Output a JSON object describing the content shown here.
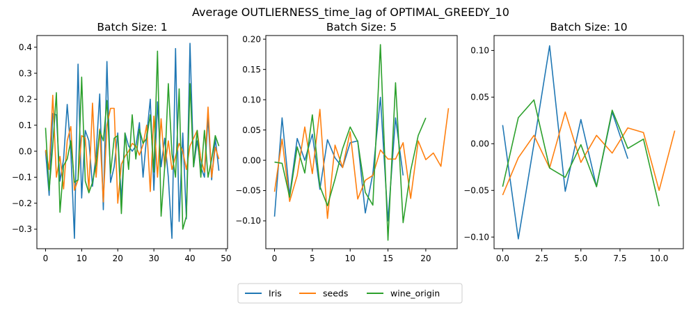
{
  "figure": {
    "suptitle": "Average OUTLIERNESS_time_lag of OPTIMAL_GREEDY_10"
  },
  "legend": {
    "placement": "bottom-center",
    "entries": [
      {
        "name": "Iris",
        "color": "#1f77b4"
      },
      {
        "name": "seeds",
        "color": "#ff7f0e"
      },
      {
        "name": "wine_origin",
        "color": "#2ca02c"
      }
    ]
  },
  "chart_data": [
    {
      "type": "line",
      "title": "Batch Size: 1",
      "xlim": [
        -2.4,
        50.4
      ],
      "ylim": [
        -0.375,
        0.445
      ],
      "xticks": [
        0,
        10,
        20,
        30,
        40,
        50
      ],
      "xtick_labels": [
        "0",
        "10",
        "20",
        "30",
        "40",
        "50"
      ],
      "yticks": [
        -0.3,
        -0.2,
        -0.1,
        0.0,
        0.1,
        0.2,
        0.3,
        0.4
      ],
      "ytick_labels": [
        "−0.3",
        "−0.2",
        "−0.1",
        "0.0",
        "0.1",
        "0.2",
        "0.3",
        "0.4"
      ],
      "series": [
        {
          "name": "Iris",
          "color": "#1f77b4",
          "y": [
            0.0,
            -0.17,
            0.145,
            0.14,
            -0.115,
            -0.03,
            0.18,
            0.0,
            -0.335,
            0.335,
            -0.18,
            0.08,
            0.04,
            -0.135,
            -0.01,
            0.22,
            -0.225,
            0.345,
            -0.12,
            -0.06,
            0.07,
            -0.19,
            0.07,
            0.02,
            0.0,
            0.02,
            0.11,
            -0.1,
            0.06,
            0.2,
            -0.15,
            0.19,
            -0.06,
            0.05,
            -0.1,
            -0.335,
            0.395,
            -0.27,
            0.07,
            -0.26,
            0.415,
            -0.06,
            0.04,
            -0.06,
            -0.1,
            0.13,
            -0.11,
            0.05,
            -0.075
          ]
        },
        {
          "name": "seeds",
          "color": "#ff7f0e",
          "y": [
            0.005,
            -0.07,
            0.215,
            -0.1,
            -0.02,
            -0.145,
            0.04,
            0.095,
            -0.15,
            -0.11,
            0.06,
            0.05,
            -0.15,
            0.185,
            -0.1,
            0.085,
            -0.195,
            0.1,
            0.165,
            0.165,
            -0.2,
            -0.05,
            -0.02,
            0.0,
            0.03,
            0.02,
            -0.015,
            0.025,
            0.1,
            -0.155,
            0.135,
            -0.1,
            0.125,
            -0.065,
            0.04,
            -0.07,
            -0.02,
            0.03,
            0.0,
            -0.07,
            0.02,
            0.05,
            0.08,
            -0.03,
            -0.08,
            0.17,
            -0.1,
            0.015,
            -0.03
          ]
        },
        {
          "name": "wine_origin",
          "color": "#2ca02c",
          "y": [
            0.09,
            -0.15,
            0.02,
            0.225,
            -0.235,
            -0.055,
            -0.03,
            0.04,
            -0.12,
            -0.11,
            0.285,
            -0.115,
            -0.16,
            -0.12,
            -0.05,
            0.08,
            0.04,
            0.195,
            -0.085,
            0.05,
            0.06,
            -0.24,
            0.07,
            -0.07,
            0.14,
            -0.03,
            0.085,
            0.03,
            0.05,
            0.14,
            -0.08,
            0.385,
            -0.25,
            -0.06,
            0.26,
            -0.01,
            -0.1,
            0.24,
            -0.3,
            -0.25,
            0.26,
            -0.06,
            0.08,
            -0.1,
            0.08,
            -0.1,
            -0.03,
            0.06,
            0.02
          ]
        }
      ]
    },
    {
      "type": "line",
      "title": "Batch Size: 5",
      "xlim": [
        -1.15,
        24.15
      ],
      "ylim": [
        -0.146,
        0.206
      ],
      "xticks": [
        0,
        5,
        10,
        15,
        20
      ],
      "xtick_labels": [
        "0",
        "5",
        "10",
        "15",
        "20"
      ],
      "yticks": [
        -0.1,
        -0.05,
        0.0,
        0.05,
        0.1,
        0.15,
        0.2
      ],
      "ytick_labels": [
        "−0.10",
        "−0.05",
        "0.00",
        "0.05",
        "0.10",
        "0.15",
        "0.20"
      ],
      "series": [
        {
          "name": "Iris",
          "color": "#1f77b4",
          "y": [
            -0.093,
            0.07,
            -0.058,
            0.036,
            0.0,
            0.043,
            -0.048,
            0.034,
            0.004,
            -0.012,
            0.029,
            0.032,
            -0.087,
            -0.022,
            0.104,
            -0.1,
            0.07,
            -0.025
          ]
        },
        {
          "name": "seeds",
          "color": "#ff7f0e",
          "y": [
            -0.052,
            0.035,
            -0.068,
            -0.025,
            0.055,
            -0.022,
            0.084,
            -0.096,
            0.025,
            -0.012,
            0.047,
            -0.064,
            -0.033,
            -0.025,
            0.017,
            0.002,
            0.002,
            0.029,
            -0.063,
            0.032,
            0.001,
            0.012,
            -0.01,
            0.086
          ]
        },
        {
          "name": "wine_origin",
          "color": "#2ca02c",
          "y": [
            -0.003,
            -0.005,
            -0.061,
            0.022,
            -0.021,
            0.075,
            -0.043,
            -0.075,
            -0.031,
            0.019,
            0.055,
            0.031,
            -0.053,
            -0.074,
            0.191,
            -0.132,
            0.128,
            -0.103,
            -0.017,
            0.041,
            0.07
          ]
        }
      ]
    },
    {
      "type": "line",
      "title": "Batch Size: 10",
      "xlim": [
        -0.55,
        11.55
      ],
      "ylim": [
        -0.1125,
        0.116
      ],
      "xticks": [
        0.0,
        2.5,
        5.0,
        7.5,
        10.0
      ],
      "xtick_labels": [
        "0.0",
        "2.5",
        "5.0",
        "7.5",
        "10.0"
      ],
      "yticks": [
        -0.1,
        -0.05,
        0.0,
        0.05,
        0.1
      ],
      "ytick_labels": [
        "−0.10",
        "−0.05",
        "0.00",
        "0.05",
        "0.10"
      ],
      "series": [
        {
          "name": "Iris",
          "color": "#1f77b4",
          "y": [
            0.02,
            -0.102,
            0.0,
            0.105,
            -0.051,
            0.026,
            -0.046,
            0.034,
            -0.016
          ]
        },
        {
          "name": "seeds",
          "color": "#ff7f0e",
          "y": [
            -0.055,
            -0.015,
            0.009,
            -0.026,
            0.034,
            -0.02,
            0.009,
            -0.01,
            0.017,
            0.012,
            -0.05,
            0.014
          ]
        },
        {
          "name": "wine_origin",
          "color": "#2ca02c",
          "y": [
            -0.046,
            0.028,
            0.047,
            -0.026,
            -0.036,
            -0.001,
            -0.046,
            0.036,
            -0.005,
            0.005,
            -0.067
          ]
        }
      ]
    }
  ]
}
